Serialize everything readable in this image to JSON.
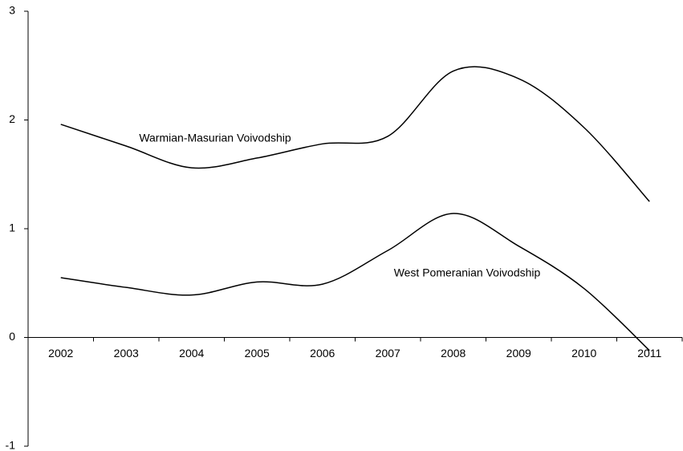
{
  "chart_data": {
    "type": "line",
    "categories": [
      "2002",
      "2003",
      "2004",
      "2005",
      "2006",
      "2007",
      "2008",
      "2009",
      "2010",
      "2011"
    ],
    "series": [
      {
        "name": "Warmian-Masurian Voivodship",
        "color": "#000000",
        "values": [
          1.96,
          1.76,
          1.56,
          1.65,
          1.78,
          1.85,
          2.45,
          2.38,
          1.93,
          1.25
        ]
      },
      {
        "name": "West Pomeranian Voivodship",
        "color": "#000000",
        "values": [
          0.55,
          0.46,
          0.39,
          0.51,
          0.49,
          0.8,
          1.14,
          0.84,
          0.45,
          -0.12
        ]
      }
    ],
    "ylim": [
      -1,
      3
    ],
    "yticks": [
      -1,
      0,
      1,
      2,
      3
    ],
    "smooth": true
  }
}
